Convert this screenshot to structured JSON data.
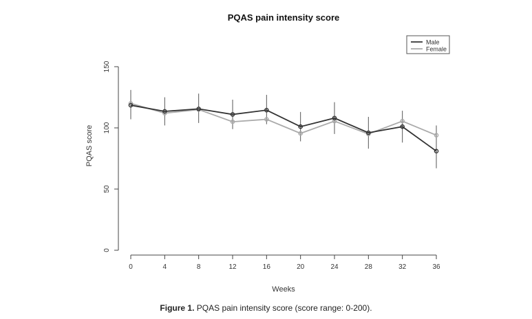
{
  "chart_data": {
    "type": "line",
    "title": "PQAS pain intensity score",
    "xlabel": "Weeks",
    "ylabel": "PQAS score",
    "x": [
      0,
      4,
      8,
      12,
      16,
      20,
      24,
      28,
      32,
      36
    ],
    "xticks": [
      "0",
      "4",
      "8",
      "12",
      "16",
      "20",
      "24",
      "28",
      "32",
      "36"
    ],
    "yticks": [
      "0",
      "50",
      "100",
      "150"
    ],
    "ylim": [
      0,
      150
    ],
    "legend_position": "top-right",
    "series": [
      {
        "name": "Male",
        "color": "#333333",
        "values": [
          118.5,
          113.5,
          115.5,
          111,
          114.5,
          101,
          108,
          96,
          101,
          81
        ],
        "error_low": [
          107,
          102,
          104,
          99,
          103,
          89,
          95,
          83,
          88,
          67
        ],
        "error_high": [
          131,
          125,
          128,
          123,
          127,
          113,
          121,
          109,
          114,
          102
        ]
      },
      {
        "name": "Female",
        "color": "#aaaaaa",
        "values": [
          120,
          112,
          115,
          105,
          107,
          95.5,
          105.5,
          95,
          105.5,
          94
        ],
        "error_low": [],
        "error_high": []
      }
    ],
    "grid": false
  },
  "caption": {
    "label": "Figure 1.",
    "text": " PQAS pain intensity score (score range: 0-200)."
  }
}
